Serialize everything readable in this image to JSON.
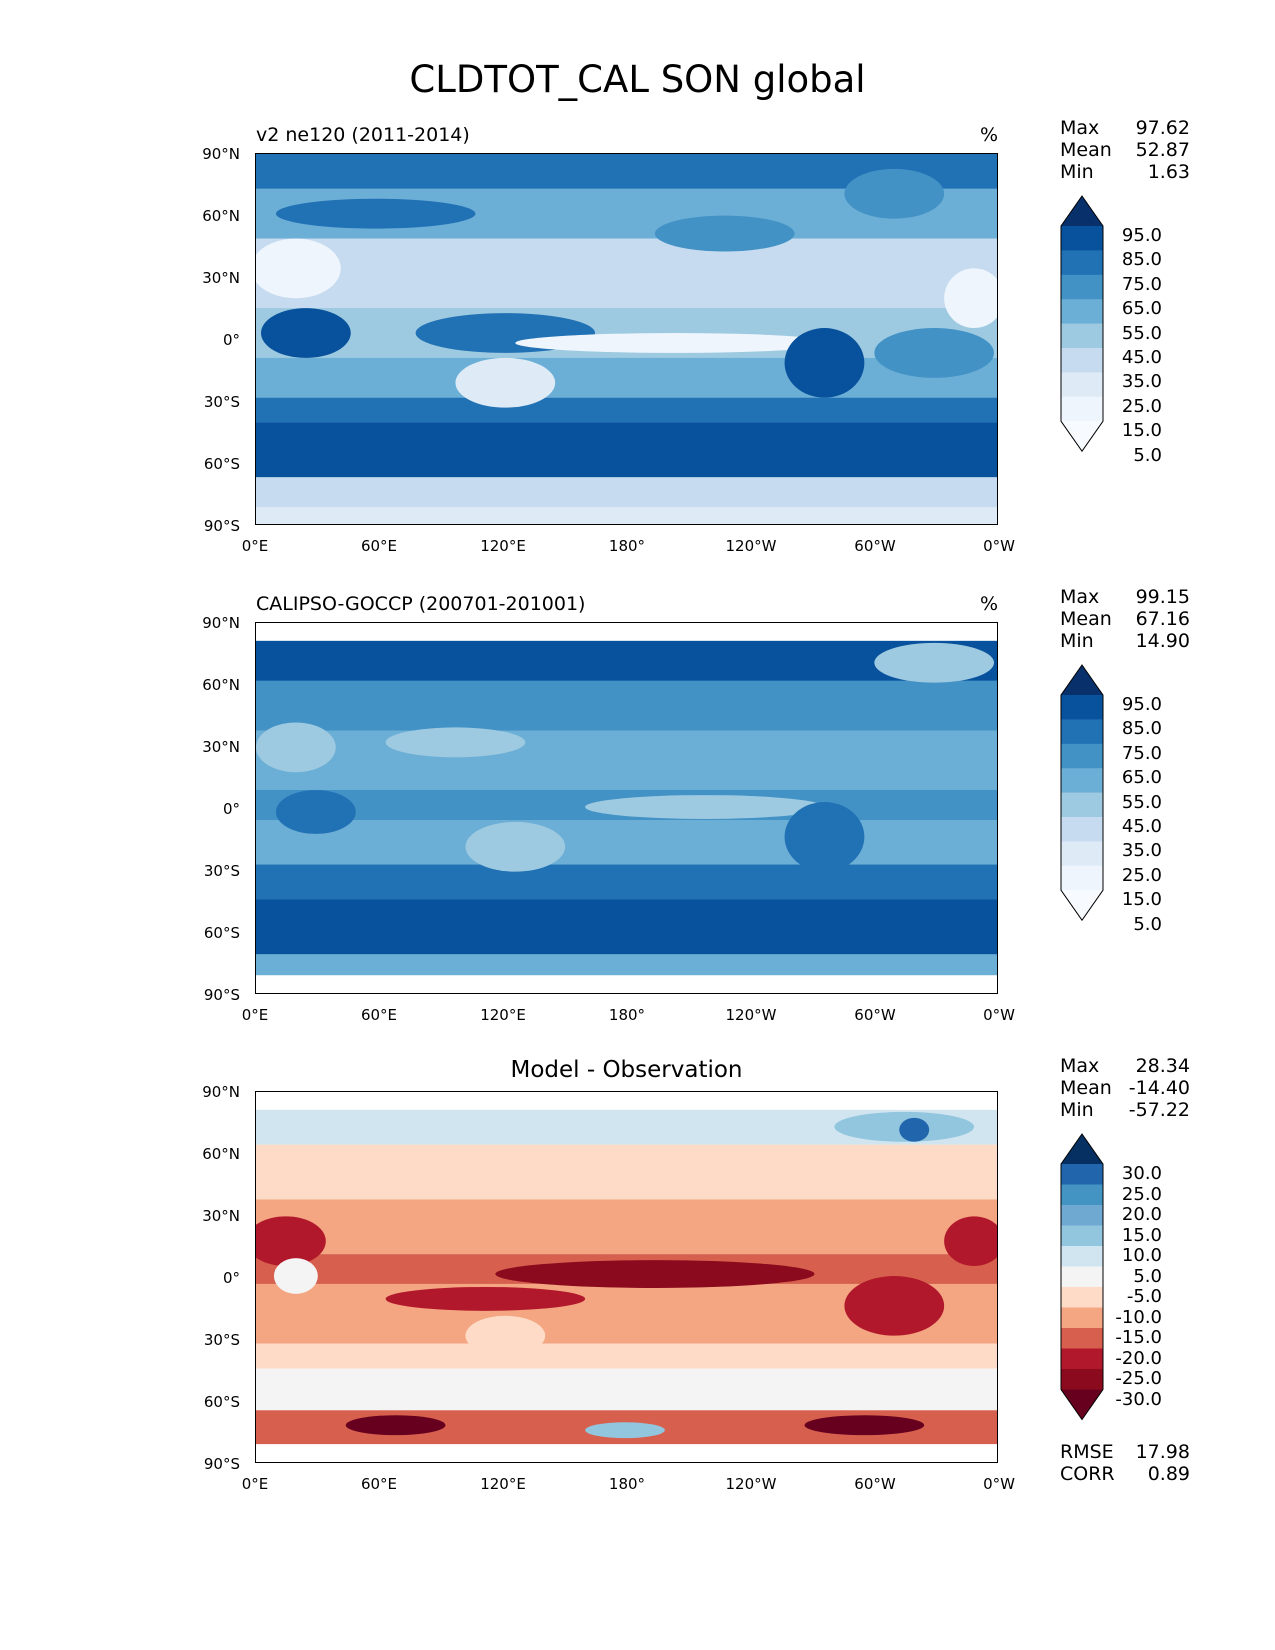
{
  "figure_title": "CLDTOT_CAL SON global",
  "axes": {
    "y_ticks": [
      "90°N",
      "60°N",
      "30°N",
      "0°",
      "30°S",
      "60°S",
      "90°S"
    ],
    "x_ticks": [
      "0°E",
      "60°E",
      "120°E",
      "180°",
      "120°W",
      "60°W",
      "0°W"
    ]
  },
  "panels": [
    {
      "title": "v2 ne120 (2011-2014)",
      "units": "%",
      "stats": [
        {
          "label": "Max",
          "value": "97.62"
        },
        {
          "label": "Mean",
          "value": "52.87"
        },
        {
          "label": "Min",
          "value": "1.63"
        }
      ],
      "colorbar": {
        "ticks": [
          "95.0",
          "85.0",
          "75.0",
          "65.0",
          "55.0",
          "45.0",
          "35.0",
          "25.0",
          "15.0",
          "5.0"
        ],
        "colors": [
          "#08306b",
          "#08519c",
          "#2171b5",
          "#4292c6",
          "#6baed6",
          "#9ecae1",
          "#c6dbef",
          "#deebf7",
          "#eef5fc",
          "#f7fbff"
        ]
      }
    },
    {
      "title": "CALIPSO-GOCCP (200701-201001)",
      "units": "%",
      "stats": [
        {
          "label": "Max",
          "value": "99.15"
        },
        {
          "label": "Mean",
          "value": "67.16"
        },
        {
          "label": "Min",
          "value": "14.90"
        }
      ],
      "colorbar": {
        "ticks": [
          "95.0",
          "85.0",
          "75.0",
          "65.0",
          "55.0",
          "45.0",
          "35.0",
          "25.0",
          "15.0",
          "5.0"
        ],
        "colors": [
          "#08306b",
          "#08519c",
          "#2171b5",
          "#4292c6",
          "#6baed6",
          "#9ecae1",
          "#c6dbef",
          "#deebf7",
          "#eef5fc",
          "#f7fbff"
        ]
      }
    },
    {
      "title": "Model - Observation",
      "units": "",
      "stats": [
        {
          "label": "Max",
          "value": "28.34"
        },
        {
          "label": "Mean",
          "value": "-14.40"
        },
        {
          "label": "Min",
          "value": "-57.22"
        }
      ],
      "colorbar": {
        "ticks": [
          "30.0",
          "25.0",
          "20.0",
          "15.0",
          "10.0",
          "5.0",
          "-5.0",
          "-10.0",
          "-15.0",
          "-20.0",
          "-25.0",
          "-30.0"
        ],
        "colors": [
          "#053061",
          "#2166ac",
          "#4393c3",
          "#6fa9d2",
          "#92c5de",
          "#d1e5f0",
          "#f4f4f4",
          "#fddbc7",
          "#f4a582",
          "#d6604d",
          "#b2182b",
          "#8b0a1e",
          "#67001f"
        ]
      },
      "metrics": [
        {
          "label": "RMSE",
          "value": "17.98"
        },
        {
          "label": "CORR",
          "value": "0.89"
        }
      ]
    }
  ]
}
